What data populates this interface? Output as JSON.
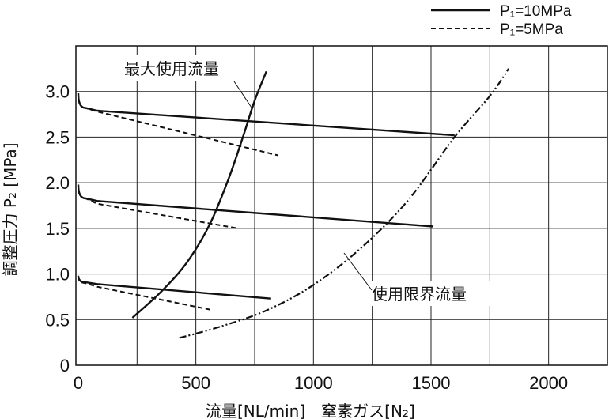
{
  "chart_data": {
    "type": "line",
    "xlabel": "流量[NL/min]　窒素ガス[N₂]",
    "ylabel": "調整圧力 P₂ [MPa]",
    "xlim": [
      -10,
      2250
    ],
    "ylim": [
      0,
      3.5
    ],
    "x_ticks": [
      0,
      500,
      1000,
      1500,
      2000
    ],
    "y_ticks": [
      0,
      0.5,
      1.0,
      1.5,
      2.0,
      2.5,
      3.0
    ],
    "x_tick_labels": [
      "0",
      "500",
      "1000",
      "1500",
      "2000"
    ],
    "y_tick_labels": [
      "0",
      "0.5",
      "1.0",
      "1.5",
      "2.0",
      "2.5",
      "3.0"
    ],
    "grid": true,
    "legend_position": "top-right",
    "legend": [
      {
        "label": "P₁=10MPa",
        "style": "solid"
      },
      {
        "label": "P₁=5MPa",
        "style": "dashed"
      }
    ],
    "series": [
      {
        "group": "P₁=10MPa",
        "style": "solid",
        "points": [
          [
            0,
            2.98
          ],
          [
            30,
            2.82
          ],
          [
            80,
            2.79
          ],
          [
            1600,
            2.52
          ]
        ]
      },
      {
        "group": "P₁=5MPa",
        "style": "dashed",
        "points": [
          [
            0,
            2.98
          ],
          [
            30,
            2.82
          ],
          [
            80,
            2.78
          ],
          [
            850,
            2.3
          ]
        ]
      },
      {
        "group": "P₁=10MPa",
        "style": "solid",
        "points": [
          [
            0,
            1.98
          ],
          [
            30,
            1.83
          ],
          [
            80,
            1.8
          ],
          [
            1510,
            1.52
          ]
        ]
      },
      {
        "group": "P₁=5MPa",
        "style": "dashed",
        "points": [
          [
            0,
            1.98
          ],
          [
            30,
            1.83
          ],
          [
            80,
            1.77
          ],
          [
            680,
            1.5
          ]
        ]
      },
      {
        "group": "P₁=10MPa",
        "style": "solid",
        "points": [
          [
            0,
            0.98
          ],
          [
            30,
            0.91
          ],
          [
            80,
            0.89
          ],
          [
            820,
            0.73
          ]
        ]
      },
      {
        "group": "P₁=5MPa",
        "style": "dashed",
        "points": [
          [
            0,
            0.98
          ],
          [
            30,
            0.9
          ],
          [
            80,
            0.86
          ],
          [
            560,
            0.61
          ]
        ]
      },
      {
        "name": "最大使用流量",
        "style": "solid",
        "points": [
          [
            230,
            0.52
          ],
          [
            350,
            0.8
          ],
          [
            460,
            1.12
          ],
          [
            560,
            1.55
          ],
          [
            640,
            2.05
          ],
          [
            700,
            2.5
          ],
          [
            750,
            2.9
          ],
          [
            800,
            3.22
          ]
        ]
      },
      {
        "name": "使用限界流量",
        "style": "dash-dot-dot",
        "points": [
          [
            430,
            0.3
          ],
          [
            600,
            0.42
          ],
          [
            800,
            0.6
          ],
          [
            1000,
            0.88
          ],
          [
            1200,
            1.28
          ],
          [
            1400,
            1.8
          ],
          [
            1600,
            2.5
          ],
          [
            1750,
            2.95
          ],
          [
            1830,
            3.25
          ]
        ]
      }
    ],
    "annotations": [
      {
        "text": "最大使用流量",
        "target": "最大使用流量"
      },
      {
        "text": "使用限界流量",
        "target": "使用限界流量"
      }
    ]
  }
}
